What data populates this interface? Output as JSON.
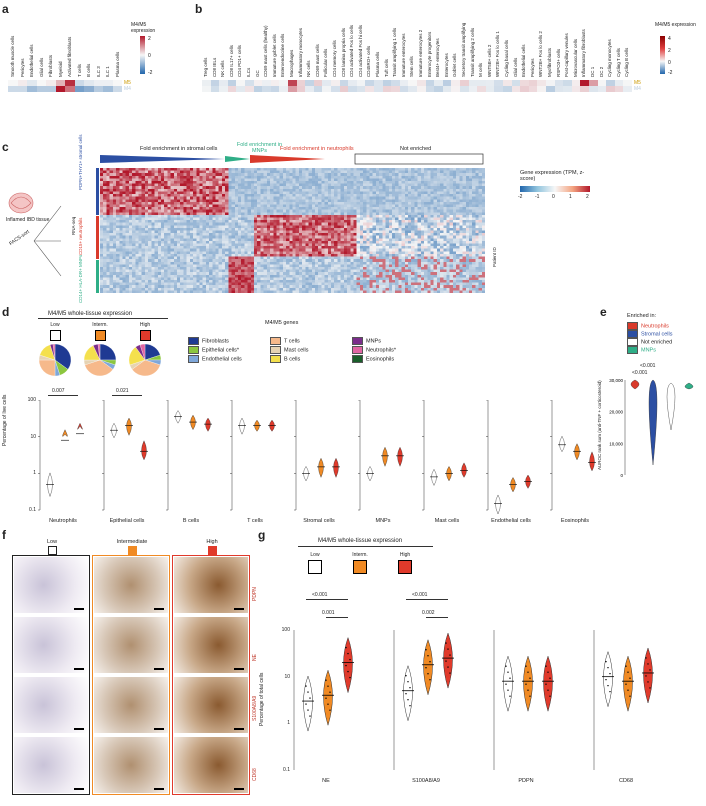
{
  "panel_labels": [
    "a",
    "b",
    "c",
    "d",
    "e",
    "f",
    "g"
  ],
  "panel_a": {
    "legend_title": "M4/M5 expression",
    "legend_ticks": [
      "2",
      "0",
      "-2"
    ],
    "row_labels": [
      "M5",
      "M4"
    ],
    "columns": [
      "Smooth muscle cells",
      "Pericytes",
      "Endothelial cells",
      "Glial cells",
      "Fibroblasts",
      "Myeloid",
      "Activated fibroblasts",
      "T cells",
      "B cells",
      "ILC 3",
      "ILC 1",
      "Plasma cells"
    ]
  },
  "panel_b": {
    "legend_title": "M4/M5 expression",
    "legend_ticks": [
      "4",
      "2",
      "0",
      "-2"
    ],
    "row_labels": [
      "M5",
      "M4"
    ],
    "columns": [
      "Treg cells",
      "CD8 IELs",
      "NK cells",
      "CD8 IL17+ cells",
      "CD4 PD1+ cells",
      "ILCs",
      "GC",
      "CD69 mast cells (healthy)",
      "Immature goblet cells",
      "Enteroendocrine cells",
      "Macrophages",
      "Inflammatory monocytes",
      "NK cells",
      "CD69 mast cells",
      "Follicular cells",
      "CD4 memory cells",
      "CD8 lamina propria cells",
      "CD4 activated Fos lo cells",
      "CD4 activated Fos hi cells",
      "CD45RO+ cells",
      "Plasma cells",
      "Tuft cells",
      "Transit amplifying 1 cells",
      "Immature enterocytes",
      "Stem cells",
      "Immature enterocytes 2",
      "Enterocyte progenitors",
      "Best4+ enterocytes",
      "Enterocytes",
      "Goblet cells",
      "Secretory transit amplifying",
      "Transit amplifying 2 cells",
      "M cells",
      "WNT5B+ cells 2",
      "WNT2B+ Fos lo cells 1",
      "Cycling basal cells",
      "Glial cells",
      "Endothelial cells",
      "Pericytes",
      "WNT2B+ Fos lo cells 2",
      "Myofibroblasts",
      "RSPO3+ cells",
      "Post-capillary venules",
      "Microvascular cells",
      "Inflammatory fibroblasts",
      "DC 1",
      "DC 2",
      "Cycling monocytes",
      "Cycling T cells",
      "Cycling B cells"
    ]
  },
  "panel_c": {
    "arrow_stromal": "Fold enrichment in stromal cells",
    "arrow_mnp": "Fold enrichment in MNPs",
    "arrow_neutro": "Fold enrichment in neutrophils",
    "not_enriched": "Not enriched",
    "left_tissue": "Inflamed IBD tissue",
    "facs": "FACS-sort",
    "rnaseq": "RNA-seq",
    "groups": [
      "PDPN+THY1+ stromal cells",
      "CD15+ neutrophils",
      "CD14+ HLA-DR+ MNPs"
    ],
    "legend_title": "Gene expression (TPM, z-score)",
    "legend_ticks": [
      "-2",
      "-1",
      "0",
      "1",
      "2"
    ],
    "x_title": "M4/M5 genes",
    "patient_label": "Patient ID"
  },
  "panel_d": {
    "title": "M4/M5 whole-tissue expression",
    "groups": [
      "Low",
      "Interm.",
      "High"
    ],
    "legend": [
      {
        "name": "Fibroblasts",
        "color": "#1f3a93"
      },
      {
        "name": "Epithelial cells*",
        "color": "#8cc63f"
      },
      {
        "name": "Endothelial cells",
        "color": "#7fa7d9"
      },
      {
        "name": "T cells",
        "color": "#f6b98b"
      },
      {
        "name": "Mast cells",
        "color": "#e6d3b3"
      },
      {
        "name": "B cells",
        "color": "#f4e04d"
      },
      {
        "name": "MNPs",
        "color": "#7b2d8b"
      },
      {
        "name": "Neutrophils*",
        "color": "#e066a3"
      },
      {
        "name": "Eosinophils",
        "color": "#1a5e2a"
      }
    ],
    "ylabel": "Percentage of live cells",
    "yticks": [
      "100",
      "10",
      "1",
      "0.1"
    ],
    "subplots": [
      {
        "name": "Neutrophils",
        "pval": "0.007",
        "values": [
          [
            0.5,
            0.8,
            0.3
          ],
          [
            8,
            12,
            15
          ],
          [
            12,
            18,
            25
          ]
        ]
      },
      {
        "name": "Epithelial cells",
        "pval": "0.021",
        "values": [
          [
            15,
            18,
            12
          ],
          [
            20,
            25,
            14
          ],
          [
            4,
            6,
            3
          ]
        ]
      },
      {
        "name": "B cells",
        "pval": "",
        "values": [
          [
            35,
            40,
            30
          ],
          [
            25,
            30,
            20
          ],
          [
            22,
            25,
            18
          ]
        ]
      },
      {
        "name": "T cells",
        "pval": "",
        "values": [
          [
            20,
            25,
            15
          ],
          [
            20,
            22,
            18
          ],
          [
            20,
            22,
            18
          ]
        ]
      },
      {
        "name": "Stromal cells",
        "pval": "",
        "values": [
          [
            1,
            1.2,
            0.8
          ],
          [
            1.5,
            2,
            1
          ],
          [
            1.5,
            2,
            1
          ]
        ]
      },
      {
        "name": "MNPs",
        "pval": "",
        "values": [
          [
            1,
            1.2,
            0.8
          ],
          [
            3,
            4,
            2
          ],
          [
            3,
            4,
            2
          ]
        ]
      },
      {
        "name": "Mast cells",
        "pval": "",
        "values": [
          [
            0.8,
            1,
            0.6
          ],
          [
            1,
            1.2,
            0.8
          ],
          [
            1.2,
            1.5,
            1
          ]
        ]
      },
      {
        "name": "Endothelial cells",
        "pval": "",
        "values": [
          [
            0.15,
            0.2,
            0.1
          ],
          [
            0.5,
            0.6,
            0.4
          ],
          [
            0.6,
            0.7,
            0.5
          ]
        ]
      },
      {
        "name": "Eosinophils",
        "pval": "",
        "values": [
          [
            6,
            8,
            5
          ],
          [
            4,
            5,
            3
          ],
          [
            2,
            3,
            1.5
          ]
        ]
      }
    ]
  },
  "panel_e": {
    "legend_title": "Enriched in:",
    "legend": [
      {
        "name": "Neutrophils",
        "color": "#d93a2b"
      },
      {
        "name": "Stromal cells",
        "color": "#2c4fa3"
      },
      {
        "name": "Not enriched",
        "color": "#ffffff"
      },
      {
        "name": "MNPs",
        "color": "#2fae87"
      }
    ],
    "pvals": [
      "<0.001",
      "<0.001"
    ],
    "ylabel": "AUROC rank sum (anti-TNF + corticosteroid)",
    "yticks": [
      "30,000",
      "20,000",
      "10,000",
      "0"
    ]
  },
  "panel_f": {
    "columns": [
      "Low",
      "Intermediate",
      "High"
    ],
    "rows": [
      "PDPN",
      "NE",
      "S100A8/A9",
      "CD68"
    ]
  },
  "panel_g": {
    "title": "M4/M5 whole-tissue expression",
    "groups": [
      "Low",
      "Interm.",
      "High"
    ],
    "ylabel": "Percentage of total cells",
    "yticks": [
      "100",
      "10",
      "1",
      "0.1"
    ],
    "subplots": [
      {
        "name": "NE",
        "pvals": [
          "<0.001",
          "0.001"
        ]
      },
      {
        "name": "S100A8/A9",
        "pvals": [
          "<0.001",
          "0.002"
        ]
      },
      {
        "name": "PDPN",
        "pvals": []
      },
      {
        "name": "CD68",
        "pvals": []
      }
    ]
  }
}
